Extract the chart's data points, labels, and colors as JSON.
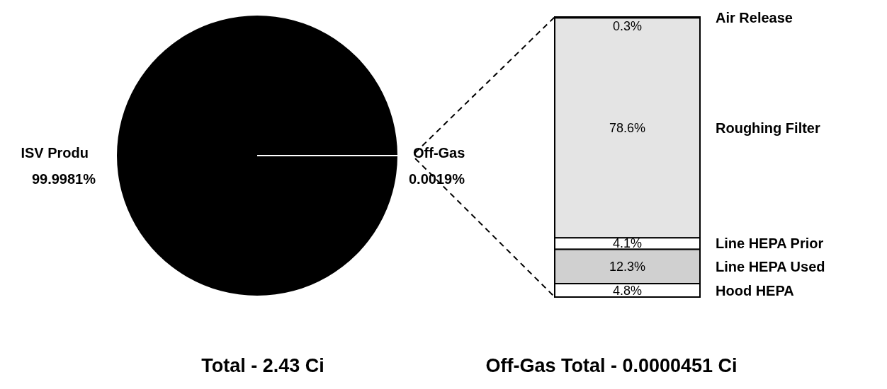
{
  "chart_data": [
    {
      "type": "pie",
      "categories": [
        "ISV Produ",
        "Off-Gas"
      ],
      "values": [
        99.9981,
        0.0019
      ],
      "colors": [
        "#000000",
        "#ffffff"
      ],
      "value_labels": [
        "99.9981%",
        "0.0019%"
      ],
      "annotations": [
        "Total - 2.43 Ci"
      ]
    },
    {
      "type": "bar",
      "stacked": true,
      "categories": [
        null
      ],
      "annotations": [
        "Off-Gas Total - 0.0000451 Ci"
      ],
      "series": [
        {
          "name": "Hood HEPA",
          "color": "#ffffff",
          "values": [
            4.8
          ],
          "value_labels": [
            "4.8%"
          ]
        },
        {
          "name": "Line HEPA  Used",
          "color": "#d0d0d0",
          "values": [
            12.3
          ],
          "value_labels": [
            "12.3%"
          ]
        },
        {
          "name": "Line HEPA Prior",
          "color": "#ffffff",
          "values": [
            4.1
          ],
          "value_labels": [
            "4.1%"
          ]
        },
        {
          "name": "Roughing Filter",
          "color": "#e4e4e4",
          "values": [
            78.6
          ],
          "value_labels": [
            "78.6%"
          ]
        },
        {
          "name": "Air Release",
          "color": "#f4f4f4",
          "values": [
            0.3
          ],
          "value_labels": [
            "0.3%"
          ]
        }
      ]
    }
  ]
}
